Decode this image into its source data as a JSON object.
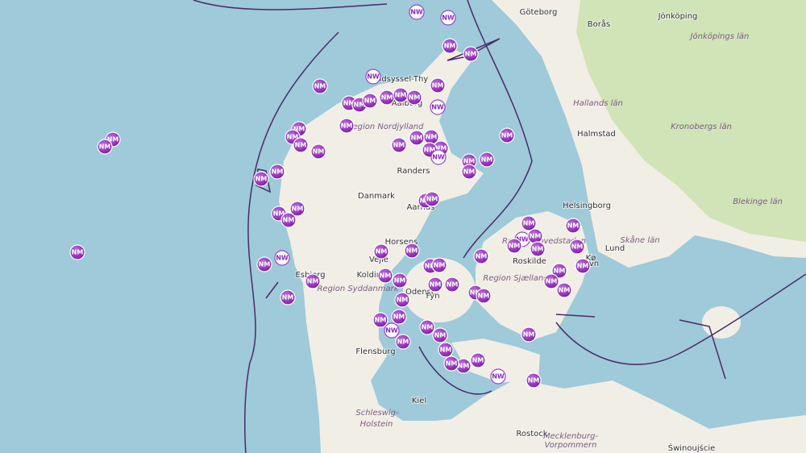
{
  "places": [
    "Göteborg",
    "Borås",
    "Jönköping",
    "Jönköpings län",
    "Hallands län",
    "Halmstad",
    "Kronobergs län",
    "Blekinge län",
    "Helsingborg",
    "Lund",
    "Skåne län",
    "Vendsyssel-Thy",
    "Aalborg",
    "Region Nordjylland",
    "Randers",
    "Danmark",
    "Aarhus",
    "Horsens",
    "Vejle",
    "Kolding",
    "Esbjerg",
    "Region Syddanmark",
    "Odense",
    "Fyn",
    "Region Sjælland",
    "Region Hovedstaden",
    "Roskilde",
    "Kø",
    "vn",
    "Flensburg",
    "Kiel",
    "Schleswig-",
    "Holstein",
    "Rostock",
    "Mecklenburg-",
    "Vorpommern",
    "Świnoujście"
  ],
  "markers": [
    "NW",
    "NW",
    "NM",
    "NM",
    "NW",
    "NM",
    "NM",
    "NM",
    "NM",
    "NM",
    "NM",
    "NW",
    "NM",
    "NM",
    "NM",
    "NM",
    "NM",
    "NM",
    "NM",
    "NM",
    "NM",
    "NM",
    "NM",
    "NM",
    "NW",
    "NM",
    "NM",
    "NM",
    "NM",
    "NM",
    "NM",
    "NM",
    "NM",
    "NM",
    "NM",
    "NM",
    "NM",
    "NM",
    "NM",
    "NM",
    "NW",
    "NM",
    "NM",
    "NM",
    "NM",
    "NM",
    "NM",
    "NM",
    "NM",
    "NM",
    "NM",
    "NM",
    "NM",
    "NW",
    "NM",
    "NM",
    "NM",
    "NM",
    "NM",
    "NM",
    "NM",
    "NM",
    "NM",
    "NM",
    "NM",
    "NM",
    "NM",
    "NM",
    "NW",
    "NM",
    "NM",
    "NM",
    "NM",
    "NM",
    "NM",
    "NM",
    "NW",
    "NM",
    "NM"
  ]
}
